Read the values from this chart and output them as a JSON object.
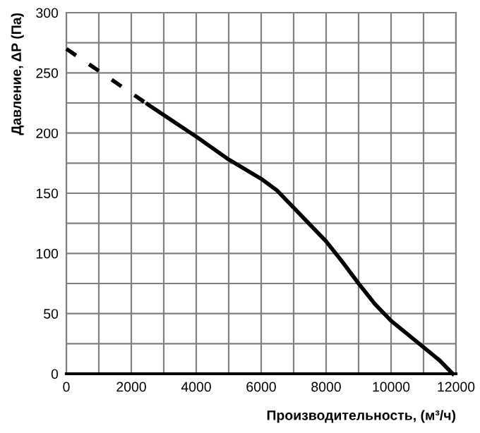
{
  "chart_data": {
    "type": "line",
    "xlabel": "Производительность, (м³/ч)",
    "ylabel": "Давление, ΔP (Па)",
    "xlim": [
      0,
      12000
    ],
    "ylim": [
      0,
      300
    ],
    "xticks": [
      0,
      {
        "value": 1000,
        "label": null
      },
      2000,
      {
        "value": 3000,
        "label": null
      },
      4000,
      {
        "value": 5000,
        "label": null
      },
      6000,
      {
        "value": 7000,
        "label": null
      },
      8000,
      {
        "value": 9000,
        "label": null
      },
      10000,
      {
        "value": 11000,
        "label": null
      },
      12000
    ],
    "yticks": [
      0,
      {
        "value": 25,
        "label": null
      },
      50,
      {
        "value": 75,
        "label": null
      },
      100,
      {
        "value": 125,
        "label": null
      },
      150,
      {
        "value": 175,
        "label": null
      },
      200,
      {
        "value": 225,
        "label": null
      },
      250,
      {
        "value": 275,
        "label": null
      },
      300
    ],
    "grid": true,
    "marker": "none",
    "series": [
      {
        "color": "#000000",
        "line_style": "dashed",
        "x": [
          0,
          2500
        ],
        "values": [
          270,
          224
        ]
      },
      {
        "color": "#000000",
        "line_style": "solid",
        "x": [
          2500,
          4000,
          5000,
          6000,
          6500,
          7000,
          8000,
          8500,
          9000,
          9500,
          10000,
          10500,
          11000,
          11500,
          11900
        ],
        "values": [
          224,
          197,
          178,
          162,
          152,
          138,
          110,
          93,
          75,
          58,
          44,
          33,
          22,
          11,
          0
        ]
      }
    ]
  }
}
